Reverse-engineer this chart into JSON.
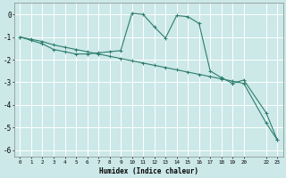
{
  "xlabel": "Humidex (Indice chaleur)",
  "background_color": "#cce8e8",
  "grid_color": "#ffffff",
  "line_color": "#2d7d6e",
  "ylim": [
    -6.3,
    0.5
  ],
  "xlim": [
    -0.5,
    23.5
  ],
  "line1_x": [
    0,
    1,
    2,
    3,
    4,
    5,
    6,
    7,
    8,
    9,
    10,
    11,
    12,
    13,
    14,
    15,
    16,
    17,
    18,
    19,
    20,
    22,
    23
  ],
  "line1_y": [
    -1.0,
    -1.15,
    -1.3,
    -1.55,
    -1.65,
    -1.75,
    -1.75,
    -1.7,
    -1.65,
    -1.6,
    0.05,
    0.0,
    -0.55,
    -1.05,
    -0.05,
    -0.1,
    -0.4,
    -2.5,
    -2.8,
    -3.05,
    -2.9,
    -4.35,
    -5.55
  ],
  "line2_x": [
    0,
    1,
    2,
    3,
    4,
    5,
    6,
    7,
    8,
    9,
    10,
    11,
    12,
    13,
    14,
    15,
    16,
    17,
    18,
    19,
    20,
    22,
    23
  ],
  "line2_y": [
    -1.0,
    -1.1,
    -1.2,
    -1.35,
    -1.45,
    -1.55,
    -1.65,
    -1.75,
    -1.85,
    -1.95,
    -2.05,
    -2.15,
    -2.25,
    -2.35,
    -2.45,
    -2.55,
    -2.65,
    -2.75,
    -2.85,
    -2.95,
    -3.05,
    -4.8,
    -5.55
  ],
  "yticks": [
    0,
    -1,
    -2,
    -3,
    -4,
    -5,
    -6
  ],
  "x_tick_positions": [
    0,
    1,
    2,
    3,
    4,
    5,
    6,
    7,
    8,
    9,
    10,
    11,
    12,
    13,
    14,
    15,
    16,
    17,
    18,
    19,
    20,
    22,
    23
  ],
  "x_tick_labels": [
    "0",
    "1",
    "2",
    "3",
    "4",
    "5",
    "6",
    "7",
    "8",
    "9",
    "10",
    "11",
    "12",
    "13",
    "14",
    "15",
    "16",
    "17",
    "18",
    "19",
    "20",
    "22",
    "23"
  ]
}
